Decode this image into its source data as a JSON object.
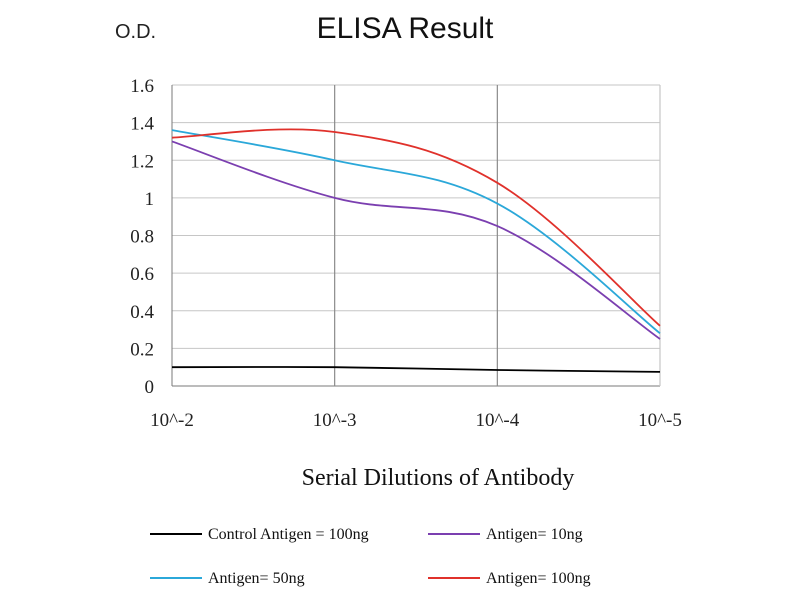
{
  "chart_data": {
    "type": "line",
    "title": "ELISA Result",
    "ylabel": "O.D.",
    "xlabel": "Serial Dilutions of Antibody",
    "categories": [
      "10^-2",
      "10^-3",
      "10^-4",
      "10^-5"
    ],
    "ylim": [
      0,
      1.6
    ],
    "yticks": [
      "0",
      "0.2",
      "0.4",
      "0.6",
      "0.8",
      "1",
      "1.2",
      "1.4",
      "1.6"
    ],
    "grid": "vertical and horizontal",
    "legend_position": "bottom",
    "series": [
      {
        "name": "Control Antigen = 100ng",
        "color": "#000000",
        "values": [
          0.1,
          0.1,
          0.085,
          0.075
        ]
      },
      {
        "name": "Antigen= 10ng",
        "color": "#7B3FB0",
        "values": [
          1.3,
          1.0,
          0.85,
          0.25
        ]
      },
      {
        "name": "Antigen= 50ng",
        "color": "#2BA8D9",
        "values": [
          1.36,
          1.2,
          0.97,
          0.28
        ]
      },
      {
        "name": "Antigen= 100ng",
        "color": "#E0312B",
        "values": [
          1.32,
          1.35,
          1.08,
          0.32
        ]
      }
    ]
  }
}
